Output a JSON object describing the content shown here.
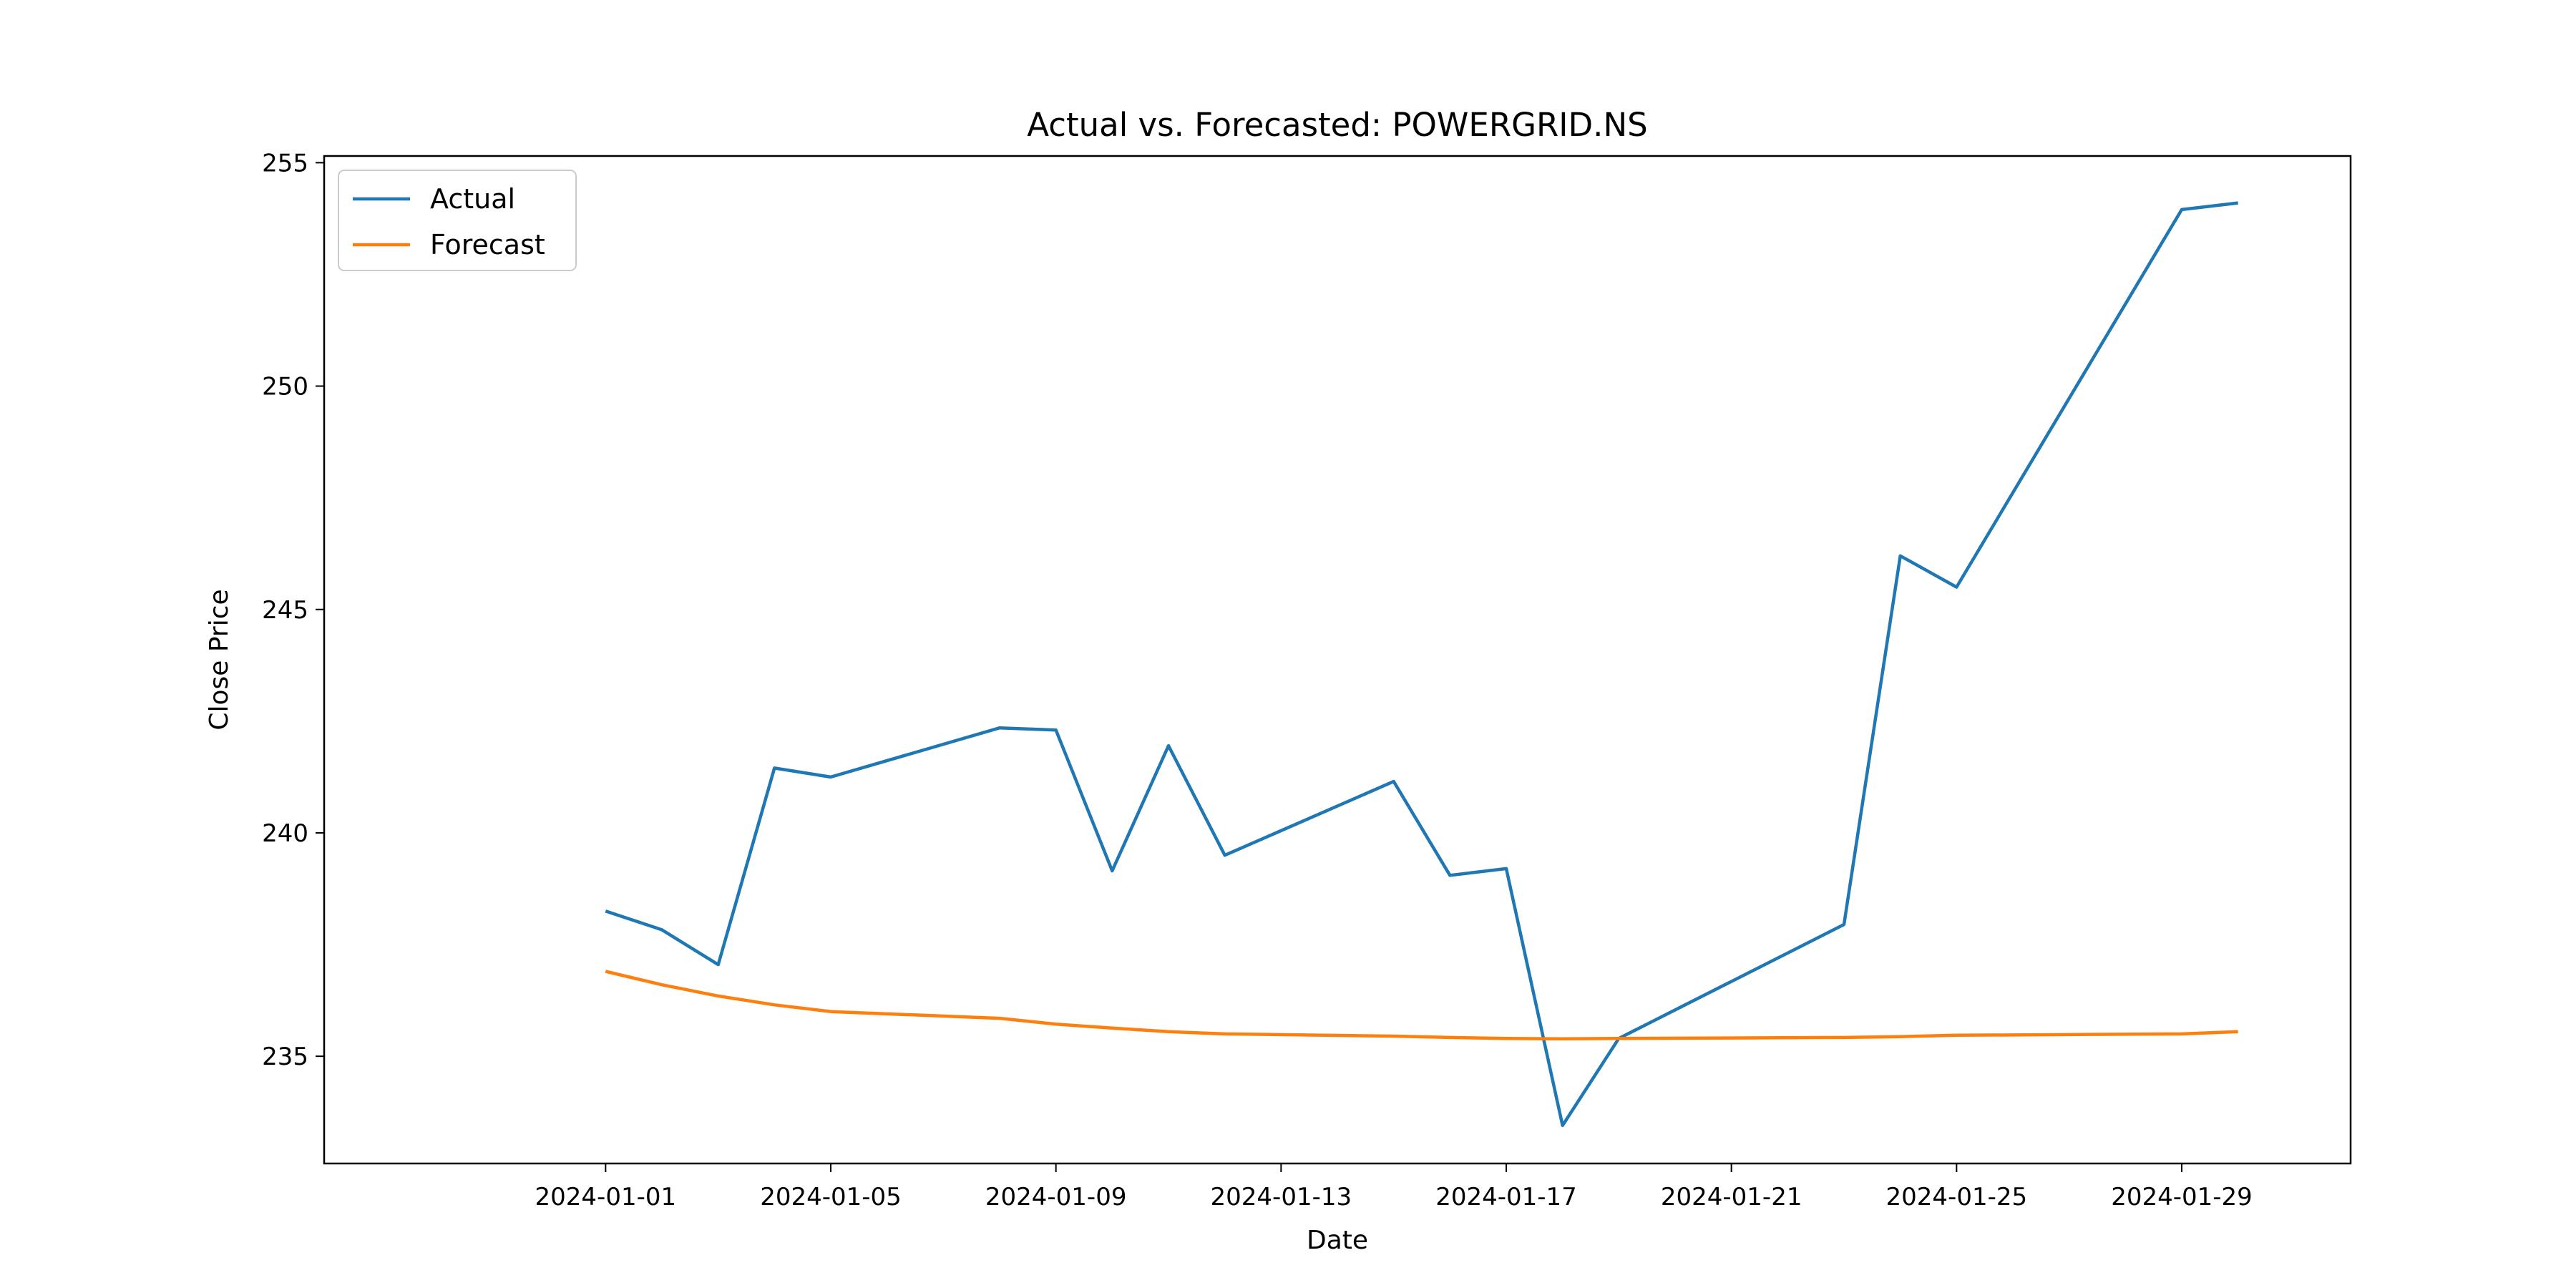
{
  "chart_data": {
    "type": "line",
    "title": "Actual vs. Forecasted: POWERGRID.NS",
    "xlabel": "Date",
    "ylabel": "Close Price",
    "xlim": [
      "2023-12-27",
      "2024-02-01"
    ],
    "ylim": [
      232.6,
      255.15
    ],
    "x_ticks": [
      "2024-01-01",
      "2024-01-05",
      "2024-01-09",
      "2024-01-13",
      "2024-01-17",
      "2024-01-21",
      "2024-01-25",
      "2024-01-29"
    ],
    "y_ticks": [
      235,
      240,
      245,
      250,
      255
    ],
    "grid": false,
    "legend_position": "top-left",
    "series": [
      {
        "name": "Actual",
        "color": "#1f77b4",
        "points": [
          [
            "2024-01-01",
            238.25
          ],
          [
            "2024-01-02",
            237.83
          ],
          [
            "2024-01-03",
            237.05
          ],
          [
            "2024-01-04",
            241.45
          ],
          [
            "2024-01-05",
            241.25
          ],
          [
            "2024-01-08",
            242.35
          ],
          [
            "2024-01-09",
            242.3
          ],
          [
            "2024-01-10",
            239.15
          ],
          [
            "2024-01-11",
            241.95
          ],
          [
            "2024-01-12",
            239.5
          ],
          [
            "2024-01-15",
            241.15
          ],
          [
            "2024-01-16",
            239.05
          ],
          [
            "2024-01-17",
            239.2
          ],
          [
            "2024-01-18",
            233.45
          ],
          [
            "2024-01-19",
            235.4
          ],
          [
            "2024-01-23",
            237.95
          ],
          [
            "2024-01-24",
            246.2
          ],
          [
            "2024-01-25",
            245.5
          ],
          [
            "2024-01-29",
            253.95
          ],
          [
            "2024-01-30",
            254.1
          ]
        ]
      },
      {
        "name": "Forecast",
        "color": "#ff7f0e",
        "points": [
          [
            "2024-01-01",
            236.9
          ],
          [
            "2024-01-02",
            236.6
          ],
          [
            "2024-01-03",
            236.35
          ],
          [
            "2024-01-04",
            236.15
          ],
          [
            "2024-01-05",
            236.0
          ],
          [
            "2024-01-08",
            235.85
          ],
          [
            "2024-01-09",
            235.72
          ],
          [
            "2024-01-10",
            235.63
          ],
          [
            "2024-01-11",
            235.55
          ],
          [
            "2024-01-12",
            235.5
          ],
          [
            "2024-01-15",
            235.45
          ],
          [
            "2024-01-16",
            235.42
          ],
          [
            "2024-01-17",
            235.4
          ],
          [
            "2024-01-18",
            235.39
          ],
          [
            "2024-01-19",
            235.4
          ],
          [
            "2024-01-23",
            235.42
          ],
          [
            "2024-01-24",
            235.44
          ],
          [
            "2024-01-25",
            235.47
          ],
          [
            "2024-01-29",
            235.5
          ],
          [
            "2024-01-30",
            235.55
          ]
        ]
      }
    ]
  }
}
